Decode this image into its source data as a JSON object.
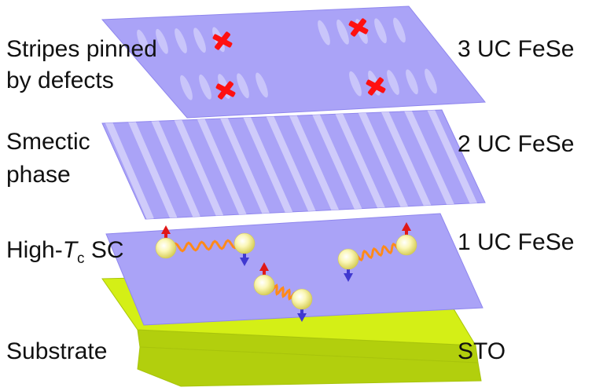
{
  "colors": {
    "layer": "#aaa3f7",
    "layer_edge": "#8f86ee",
    "stripe": "#cfcbfa",
    "substrate_top": "#d4ef16",
    "substrate_side": "#b2cf0d",
    "defect": "#ff1010",
    "spin_up": "#e01818",
    "spin_down": "#4038d0",
    "spring": "#ff8a1a",
    "electron": "#f9f4a8",
    "text": "#111111"
  },
  "left_labels": {
    "stripes_line1": "Stripes pinned",
    "stripes_line2": "by defects",
    "smectic_line1": "Smectic",
    "smectic_line2": "phase",
    "sc_prefix": "High-",
    "sc_T": "T",
    "sc_sub": "c",
    "sc_suffix": " SC",
    "substrate": "Substrate"
  },
  "right_labels": {
    "layer3": "3 UC FeSe",
    "layer2": "2 UC FeSe",
    "layer1": "1 UC FeSe",
    "substrate": "STO"
  },
  "icons": {
    "defect": "red-cross-icon",
    "cooper_pair": "spring-coupled-spin-pair-icon"
  }
}
